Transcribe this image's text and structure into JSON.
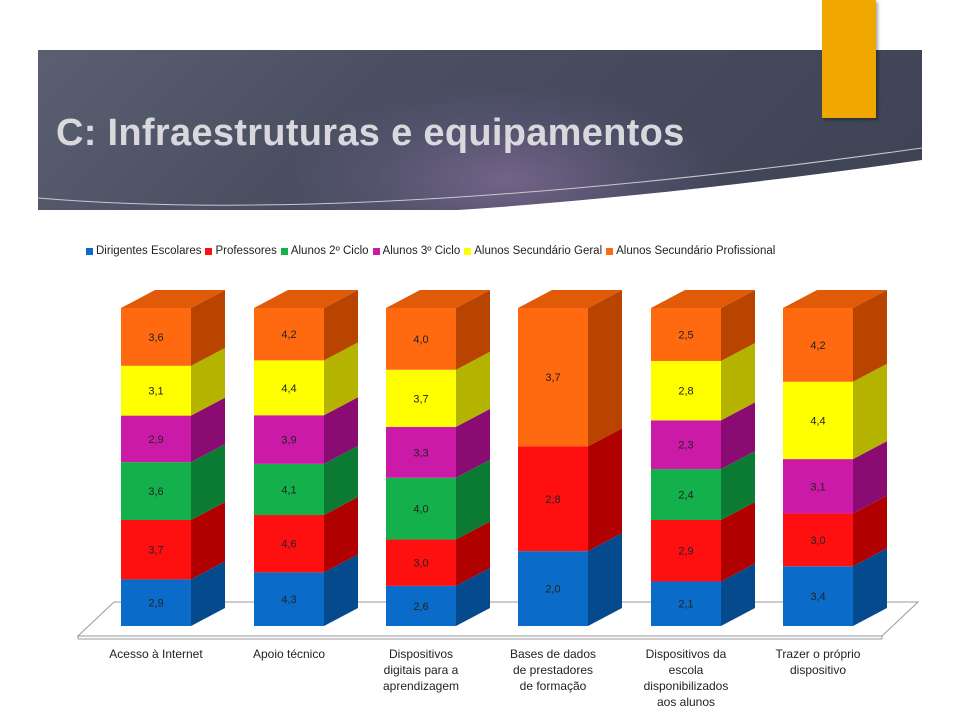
{
  "slide": {
    "title": "C: Infraestruturas e equipamentos"
  },
  "chart_data": {
    "type": "bar",
    "stacked": true,
    "three_d": true,
    "legend_position": "top",
    "categories": [
      "Acesso à Internet",
      "Apoio técnico",
      "Dispositivos digitais para a aprendizagem",
      "Bases de dados de prestadores de formação",
      "Dispositivos da escola disponibilizados aos alunos",
      "Trazer o próprio dispositivo"
    ],
    "category_lines": [
      [
        "Acesso à Internet"
      ],
      [
        "Apoio técnico"
      ],
      [
        "Dispositivos",
        "digitais para a",
        "aprendizagem"
      ],
      [
        "Bases de dados",
        "de prestadores",
        "de formação"
      ],
      [
        "Dispositivos da",
        "escola",
        "disponibilizados",
        "aos alunos"
      ],
      [
        "Trazer o próprio",
        "dispositivo"
      ]
    ],
    "series": [
      {
        "name": "Dirigentes Escolares",
        "color": "#0a6cc8",
        "side": "#064a8e",
        "top": "#0a5aa8",
        "values": [
          2.9,
          4.3,
          2.6,
          2.0,
          2.1,
          3.4
        ],
        "labels": [
          "2,9",
          "4,3",
          "2,6",
          "2,0",
          "2,1",
          "3,4"
        ]
      },
      {
        "name": "Professores",
        "color": "#ff1010",
        "side": "#b00000",
        "top": "#d40000",
        "values": [
          3.7,
          4.6,
          3.0,
          2.8,
          2.9,
          3.0
        ],
        "labels": [
          "3,7",
          "4,6",
          "3,0",
          "2,8",
          "2,9",
          "3,0"
        ]
      },
      {
        "name": "Alunos 2º Ciclo",
        "color": "#13b04b",
        "side": "#0b7a33",
        "top": "#0f953f",
        "values": [
          3.6,
          4.1,
          4.0,
          null,
          2.4,
          null
        ],
        "labels": [
          "3,6",
          "4,1",
          "4,0",
          null,
          "2,4",
          null
        ]
      },
      {
        "name": "Alunos 3º Ciclo",
        "color": "#cc1aa8",
        "side": "#8a0c72",
        "top": "#aa128c",
        "values": [
          2.9,
          3.9,
          3.3,
          null,
          2.3,
          3.1
        ],
        "labels": [
          "2,9",
          "3,9",
          "3,3",
          null,
          "2,3",
          "3,1"
        ]
      },
      {
        "name": "Alunos Secundário Geral",
        "color": "#ffff00",
        "side": "#b3b300",
        "top": "#d9d900",
        "values": [
          3.1,
          4.4,
          3.7,
          null,
          2.8,
          4.4
        ],
        "labels": [
          "3,1",
          "4,4",
          "3,7",
          null,
          "2,8",
          "4,4"
        ]
      },
      {
        "name": "Alunos Secundário Profissional",
        "color": "#ff6a10",
        "side": "#b84400",
        "top": "#e05a08",
        "values": [
          3.6,
          4.2,
          4.0,
          3.7,
          2.5,
          4.2
        ],
        "labels": [
          "3,6",
          "4,2",
          "4,0",
          "3,7",
          "2,5",
          "4,2"
        ]
      }
    ]
  }
}
